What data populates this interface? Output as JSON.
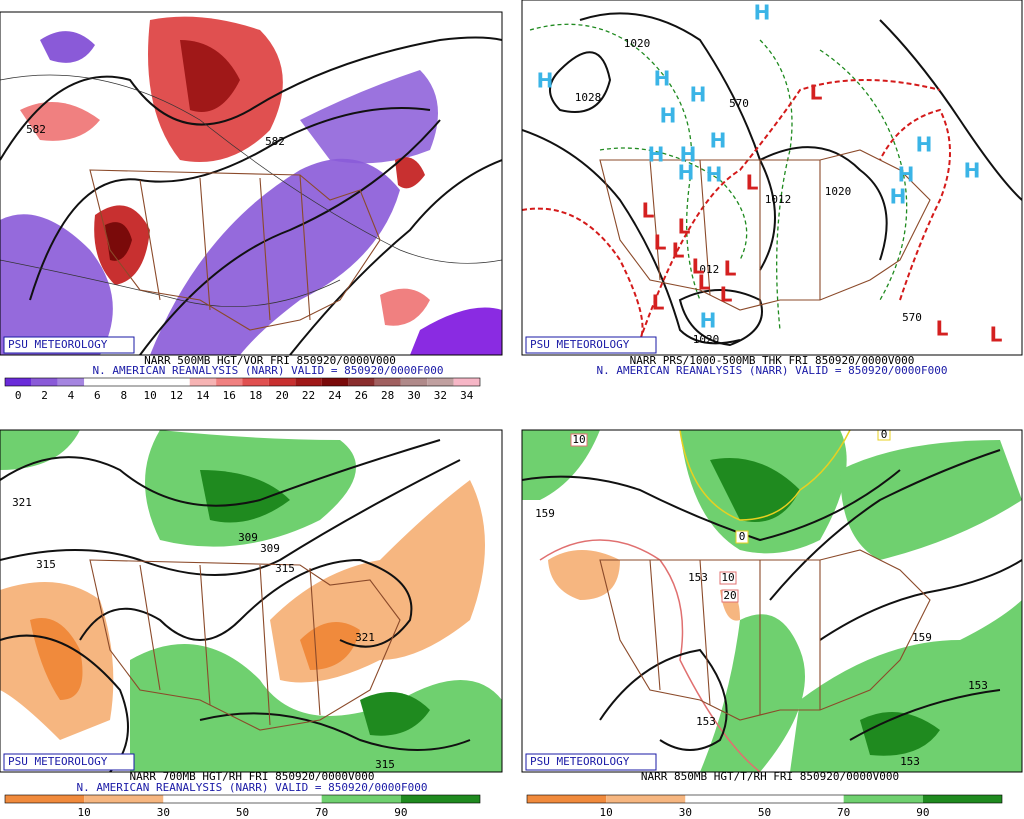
{
  "panels": [
    {
      "badge": "PSU METEOROLOGY",
      "caption": "NARR 500MB HGT/VOR FRI 850920/0000V000",
      "subcaption": "N. AMERICAN REANALYSIS (NARR) VALID = 850920/0000F000",
      "contour_labels": [
        "582",
        "582"
      ],
      "colorbar": {
        "labels": [
          "0",
          "2",
          "4",
          "6",
          "8",
          "10",
          "12",
          "14",
          "16",
          "18",
          "20",
          "22",
          "24",
          "26",
          "28",
          "30",
          "32",
          "34"
        ],
        "colors": [
          "#6a2bd9",
          "#8a5ad8",
          "#a585e0",
          "#ffffff",
          "#ffffff",
          "#ffffff",
          "#ffffff",
          "#f6b3b3",
          "#f08080",
          "#e05050",
          "#c83030",
          "#a01818",
          "#7a0a0a",
          "#8a2e2e",
          "#a06060",
          "#b08a8a",
          "#c0a0a0",
          "#f6b6c6"
        ]
      }
    },
    {
      "badge": "PSU METEOROLOGY",
      "caption": "NARR PRS/1000-500MB THK FRI 850920/0000V000",
      "subcaption": "N. AMERICAN REANALYSIS (NARR) VALID = 850920/0000F000",
      "contour_labels": [
        "1028",
        "1020",
        "1012",
        "1020",
        "1012",
        "1020",
        "570",
        "570"
      ],
      "high_symbol": "H",
      "low_symbol": "L"
    },
    {
      "badge": "PSU METEOROLOGY",
      "caption": "NARR 700MB HGT/RH FRI 850920/0000V000",
      "subcaption": "N. AMERICAN REANALYSIS (NARR) VALID = 850920/0000F000",
      "contour_labels": [
        "321",
        "315",
        "309",
        "309",
        "315",
        "321",
        "315"
      ],
      "colorbar": {
        "labels": [
          "10",
          "30",
          "50",
          "70",
          "90"
        ],
        "colors": [
          "#f08a3c",
          "#f6b680",
          "#ffffff",
          "#ffffff",
          "#6fd06f",
          "#1f8a1f"
        ]
      }
    },
    {
      "badge": "PSU METEOROLOGY",
      "caption": "NARR 850MB HGT/T/RH FRI 850920/0000V000",
      "contour_labels": [
        "159",
        "153",
        "159",
        "153",
        "153",
        "153",
        "10",
        "10",
        "20",
        "0",
        "0"
      ],
      "colorbar": {
        "labels": [
          "10",
          "30",
          "50",
          "70",
          "90"
        ],
        "colors": [
          "#f08a3c",
          "#f6b680",
          "#ffffff",
          "#ffffff",
          "#6fd06f",
          "#1f8a1f"
        ]
      }
    }
  ]
}
